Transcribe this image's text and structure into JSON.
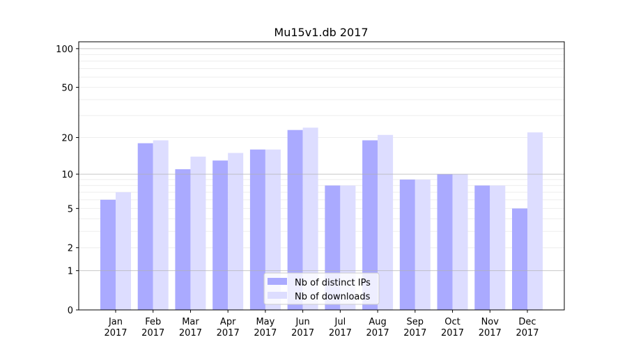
{
  "chart_data": {
    "type": "bar",
    "title": "Mu15v1.db 2017",
    "xlabel": "",
    "ylabel": "",
    "yscale": "log10(1+y)",
    "ylim": [
      0,
      113
    ],
    "yticks": [
      0,
      1,
      2,
      5,
      10,
      20,
      50,
      100
    ],
    "grid": "horizontal, major and minor",
    "legend_position": "bottom-center",
    "categories": [
      "Jan\n2017",
      "Feb\n2017",
      "Mar\n2017",
      "Apr\n2017",
      "May\n2017",
      "Jun\n2017",
      "Jul\n2017",
      "Aug\n2017",
      "Sep\n2017",
      "Oct\n2017",
      "Nov\n2017",
      "Dec\n2017"
    ],
    "series": [
      {
        "name": "Nb of distinct IPs",
        "color": "#aaaaff",
        "values": [
          6,
          18,
          11,
          13,
          16,
          23,
          8,
          19,
          9,
          10,
          8,
          5
        ]
      },
      {
        "name": "Nb of downloads",
        "color": "#ddddff",
        "values": [
          7,
          19,
          14,
          15,
          16,
          24,
          8,
          21,
          9,
          10,
          8,
          22
        ]
      }
    ]
  }
}
